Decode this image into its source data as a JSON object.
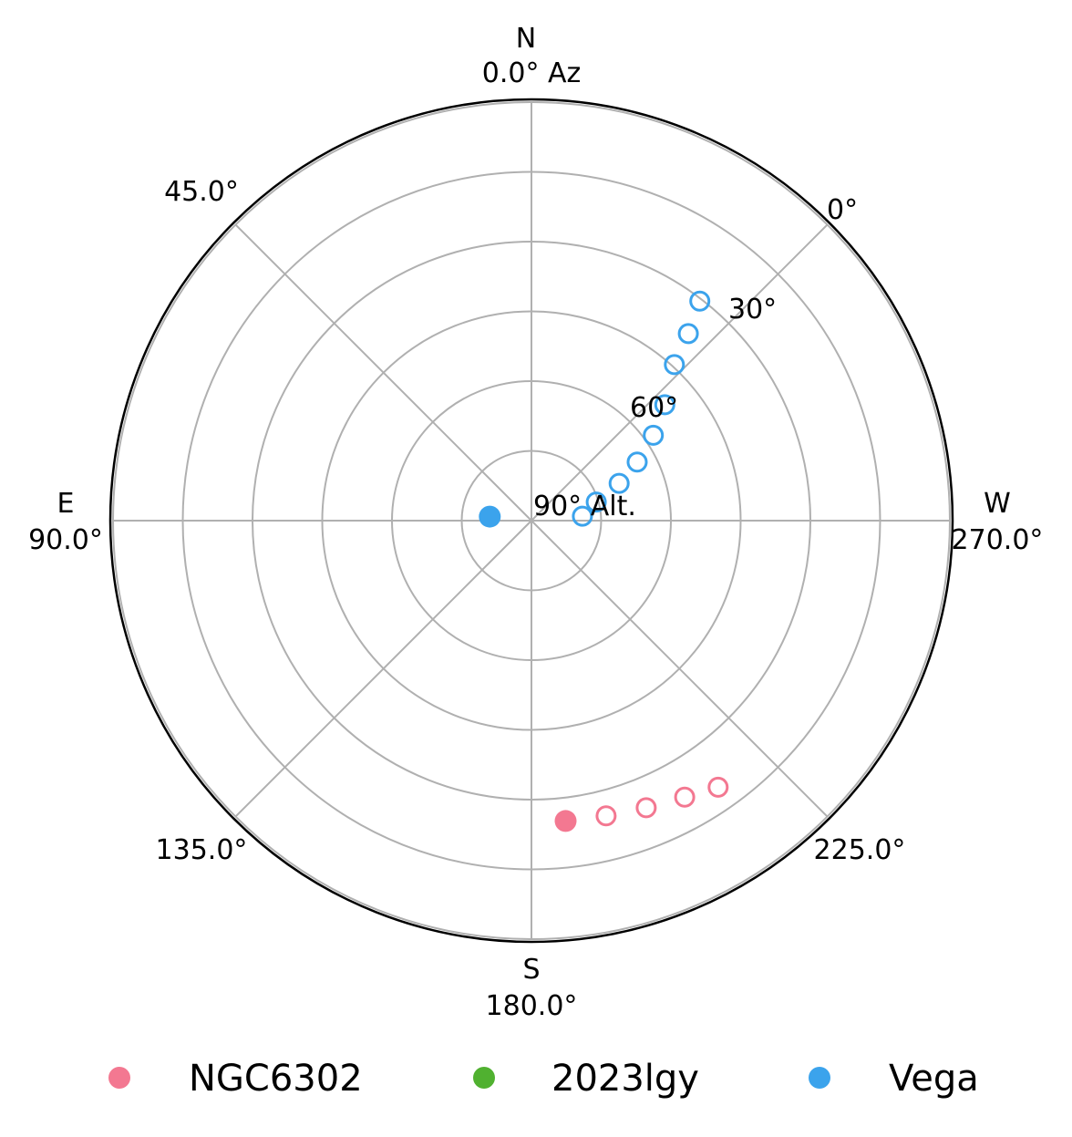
{
  "chart_data": {
    "type": "scatter",
    "projection": "polar-sky",
    "radial_axis": {
      "label": "90° Alt.",
      "ticks": [
        "0°",
        "30°",
        "60°"
      ],
      "range": [
        90,
        0
      ],
      "grid_step": 15
    },
    "angular_axis": {
      "direction": "counterclockwise",
      "zero": "top",
      "grid_step": 45
    },
    "cardinals": [
      {
        "name": "N",
        "az_label": "0.0° Az"
      },
      {
        "name": "E",
        "az_label": "90.0°"
      },
      {
        "name": "S",
        "az_label": "180.0°"
      },
      {
        "name": "W",
        "az_label": "270.0°"
      }
    ],
    "diag_labels": [
      "45.0°",
      "135.0°",
      "225.0°"
    ],
    "grid": true,
    "legend": {
      "position": "bottom",
      "entries": [
        "NGC6302",
        "2023lgy",
        "Vega"
      ]
    },
    "series": [
      {
        "name": "NGC6302",
        "color": "#f37891",
        "points": [
          {
            "az": 186.5,
            "alt": 25.0,
            "filled": true
          },
          {
            "az": 194.2,
            "alt": 24.5,
            "filled": false
          },
          {
            "az": 201.8,
            "alt": 23.5,
            "filled": false
          },
          {
            "az": 209.0,
            "alt": 22.0,
            "filled": false
          },
          {
            "az": 215.0,
            "alt": 20.0,
            "filled": false
          }
        ]
      },
      {
        "name": "2023lgy",
        "color": "#50b130",
        "points": []
      },
      {
        "name": "Vega",
        "color": "#3ba3ec",
        "points": [
          {
            "az": 84.5,
            "alt": 81.0,
            "filled": true
          },
          {
            "az": 275.0,
            "alt": 79.0,
            "filled": false
          },
          {
            "az": 286.0,
            "alt": 75.5,
            "filled": false
          },
          {
            "az": 293.0,
            "alt": 69.5,
            "filled": false
          },
          {
            "az": 299.0,
            "alt": 64.0,
            "filled": false
          },
          {
            "az": 305.0,
            "alt": 58.0,
            "filled": false
          },
          {
            "az": 311.0,
            "alt": 52.0,
            "filled": false
          },
          {
            "az": 317.5,
            "alt": 44.5,
            "filled": false
          },
          {
            "az": 320.0,
            "alt": 37.5,
            "filled": false
          },
          {
            "az": 322.5,
            "alt": 30.5,
            "filled": false
          }
        ]
      }
    ]
  }
}
